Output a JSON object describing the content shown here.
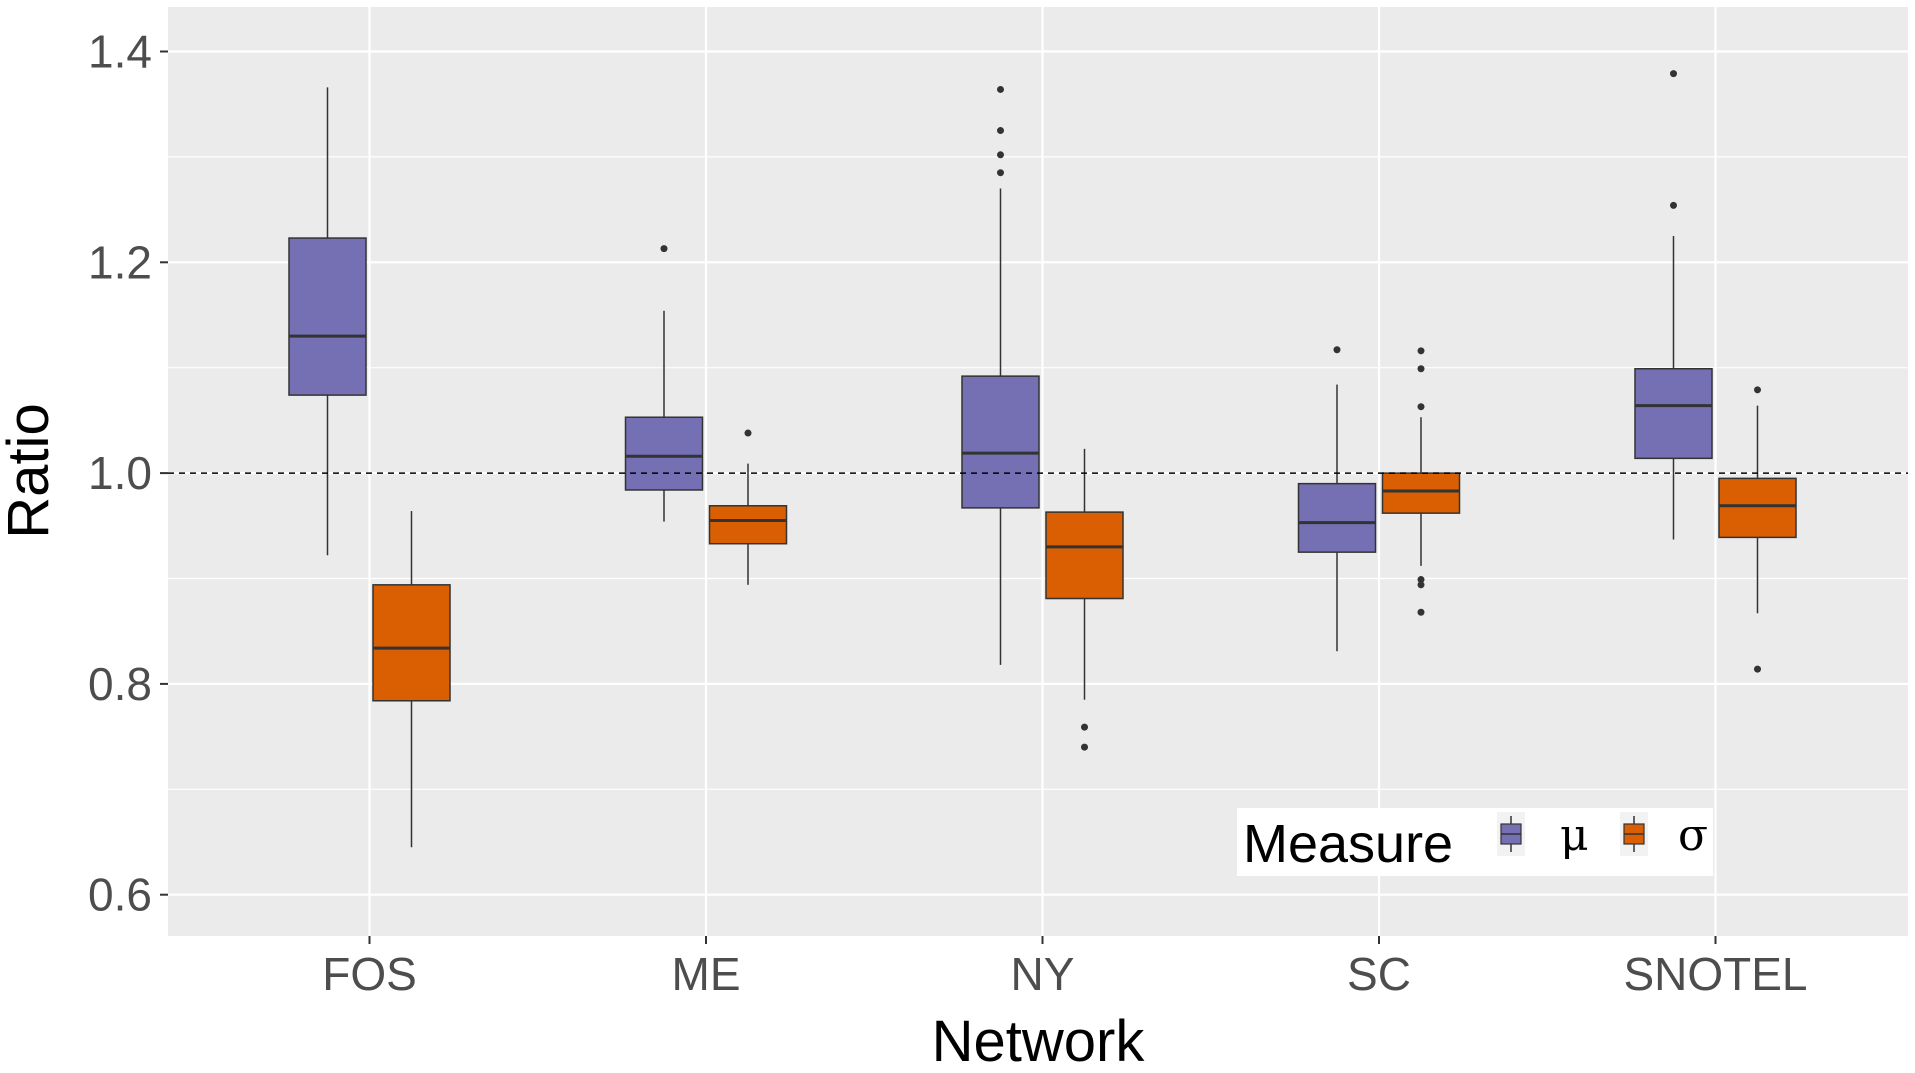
{
  "chart_data": {
    "type": "boxplot",
    "title": "",
    "xlabel": "Network",
    "ylabel": "Ratio",
    "ylim": [
      0.56,
      1.44
    ],
    "yticks": [
      0.6,
      0.8,
      1.0,
      1.2,
      1.4
    ],
    "ytick_labels": [
      "0.6",
      "0.8",
      "1.0",
      "1.2",
      "1.4"
    ],
    "categories": [
      "FOS",
      "ME",
      "NY",
      "SC",
      "SNOTEL"
    ],
    "reference_line": {
      "y": 1.0,
      "style": "dashed"
    },
    "grid": true,
    "legend": {
      "title": "Measure",
      "placement": "bottom-right"
    },
    "series": [
      {
        "name": "μ",
        "color": "#7570b3",
        "boxes": [
          {
            "category": "FOS",
            "whisker_low": 0.922,
            "q1": 1.074,
            "median": 1.13,
            "q3": 1.223,
            "whisker_high": 1.366,
            "outliers": []
          },
          {
            "category": "ME",
            "whisker_low": 0.954,
            "q1": 0.984,
            "median": 1.016,
            "q3": 1.053,
            "whisker_high": 1.154,
            "outliers": [
              1.213
            ]
          },
          {
            "category": "NY",
            "whisker_low": 0.818,
            "q1": 0.967,
            "median": 1.019,
            "q3": 1.092,
            "whisker_high": 1.27,
            "outliers": [
              1.285,
              1.302,
              1.325,
              1.364
            ]
          },
          {
            "category": "SC",
            "whisker_low": 0.831,
            "q1": 0.925,
            "median": 0.953,
            "q3": 0.99,
            "whisker_high": 1.084,
            "outliers": [
              1.117
            ]
          },
          {
            "category": "SNOTEL",
            "whisker_low": 0.937,
            "q1": 1.014,
            "median": 1.064,
            "q3": 1.099,
            "whisker_high": 1.225,
            "outliers": [
              1.254,
              1.379
            ]
          }
        ]
      },
      {
        "name": "σ",
        "color": "#d95f02",
        "boxes": [
          {
            "category": "FOS",
            "whisker_low": 0.645,
            "q1": 0.784,
            "median": 0.834,
            "q3": 0.894,
            "whisker_high": 0.964,
            "outliers": []
          },
          {
            "category": "ME",
            "whisker_low": 0.894,
            "q1": 0.933,
            "median": 0.955,
            "q3": 0.969,
            "whisker_high": 1.009,
            "outliers": [
              1.038
            ]
          },
          {
            "category": "NY",
            "whisker_low": 0.785,
            "q1": 0.881,
            "median": 0.93,
            "q3": 0.963,
            "whisker_high": 1.023,
            "outliers": [
              0.74,
              0.759
            ]
          },
          {
            "category": "SC",
            "whisker_low": 0.912,
            "q1": 0.962,
            "median": 0.983,
            "q3": 1.0,
            "whisker_high": 1.053,
            "outliers": [
              0.868,
              0.894,
              0.899,
              1.063,
              1.099,
              1.116
            ]
          },
          {
            "category": "SNOTEL",
            "whisker_low": 0.867,
            "q1": 0.939,
            "median": 0.969,
            "q3": 0.995,
            "whisker_high": 1.064,
            "outliers": [
              0.814,
              1.079
            ]
          }
        ]
      }
    ]
  }
}
